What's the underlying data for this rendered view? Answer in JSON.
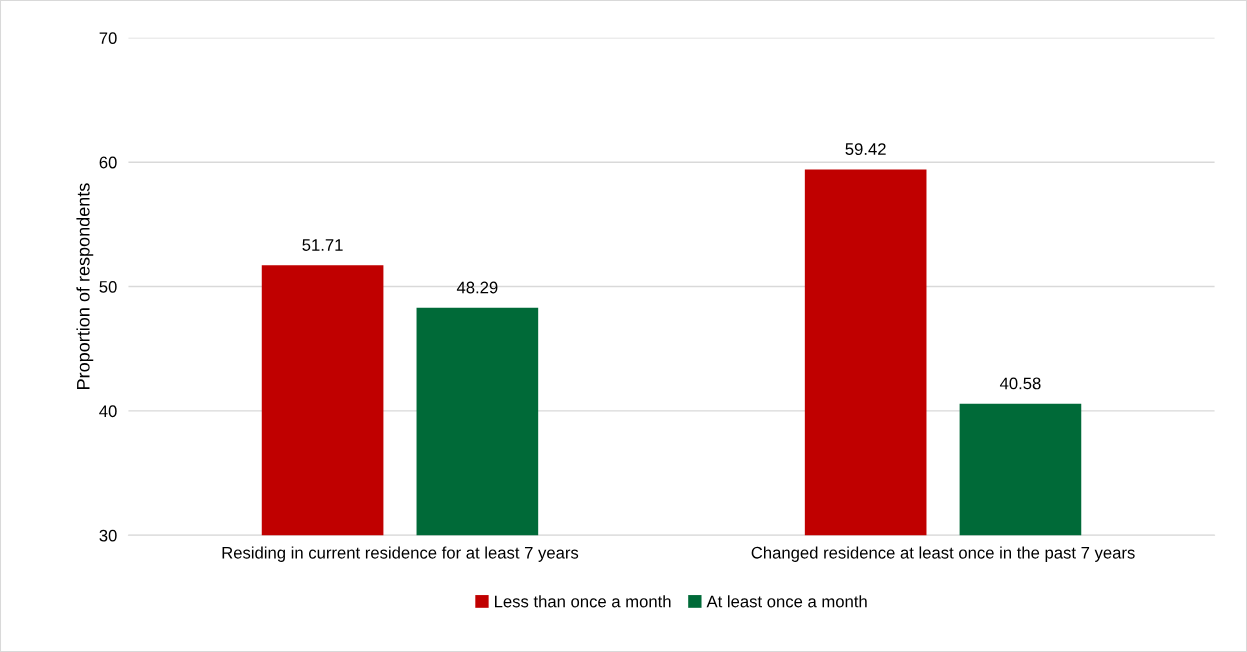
{
  "chart_data": {
    "type": "bar",
    "ylabel": "Proportion of respondents",
    "categories": [
      "Residing in current residence for at least 7 years",
      "Changed residence at least once in the past 7 years"
    ],
    "series": [
      {
        "name": "Less than once a month",
        "color": "#c00000",
        "values": [
          51.71,
          59.42
        ]
      },
      {
        "name": "At least once a month",
        "color": "#006a38",
        "values": [
          48.29,
          40.58
        ]
      }
    ],
    "ylim": [
      30,
      70
    ],
    "yticks": [
      30,
      40,
      50,
      60,
      70
    ],
    "grid": "y",
    "legend": "bottom",
    "data_labels": true
  }
}
